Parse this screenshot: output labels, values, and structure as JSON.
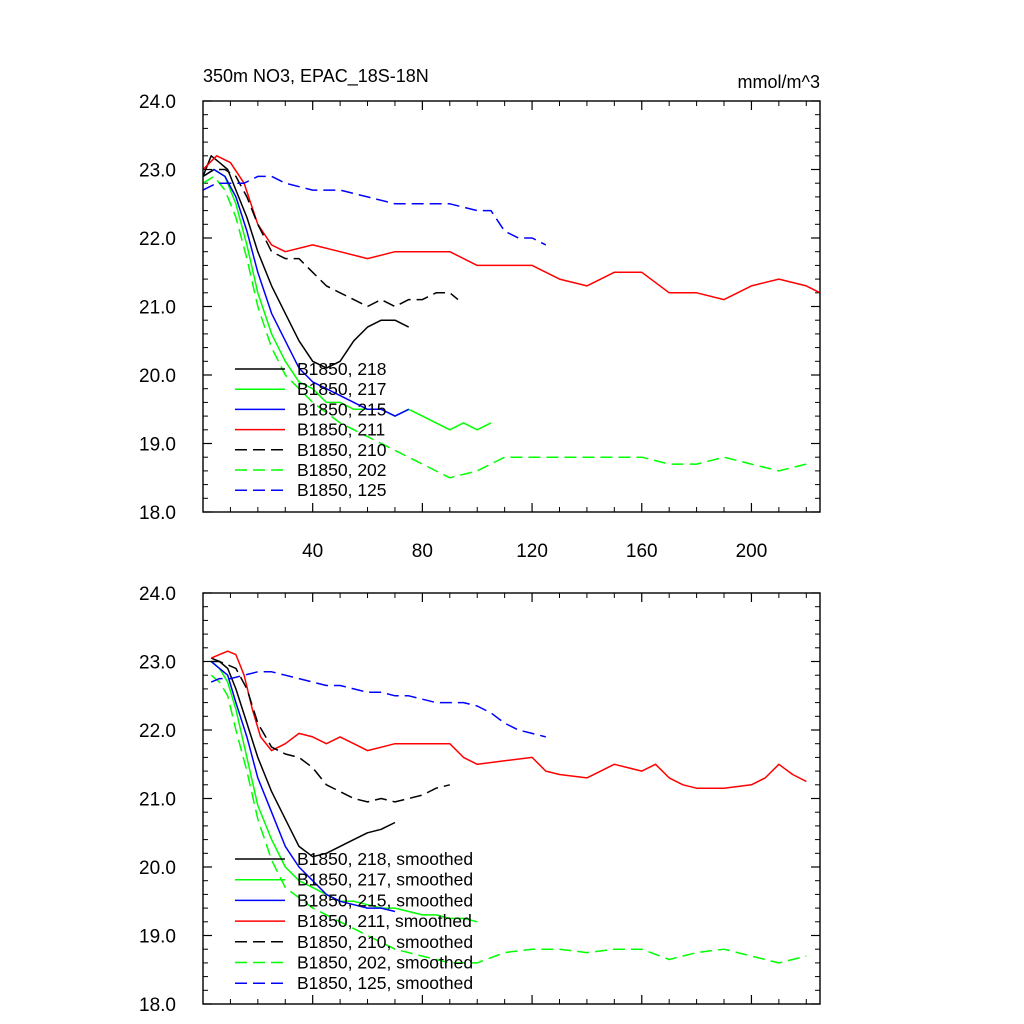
{
  "chart_data": [
    {
      "type": "line",
      "title": "350m NO3, EPAC_18S-18N",
      "units": "mmol/m^3",
      "xlabel": "",
      "ylabel": "",
      "xlim": [
        0,
        225
      ],
      "ylim": [
        18,
        24
      ],
      "xticks": [
        40,
        80,
        120,
        160,
        200
      ],
      "xtick_labels": [
        "40",
        "80",
        "120",
        "160",
        "200"
      ],
      "yticks": [
        18,
        19,
        20,
        21,
        22,
        23,
        24
      ],
      "ytick_labels": [
        "18.0",
        "19.0",
        "20.0",
        "21.0",
        "22.0",
        "23.0",
        "24.0"
      ],
      "legend_position": "lower-left",
      "series": [
        {
          "name": "B1850, 218",
          "color": "#000000",
          "dash": "solid",
          "x": [
            0,
            3,
            6,
            9,
            12,
            16,
            20,
            25,
            30,
            35,
            40,
            45,
            50,
            55,
            60,
            65,
            70,
            75
          ],
          "y": [
            22.9,
            23.2,
            23.1,
            23.0,
            22.7,
            22.3,
            21.8,
            21.3,
            20.9,
            20.5,
            20.2,
            20.1,
            20.2,
            20.5,
            20.7,
            20.8,
            20.8,
            20.7
          ]
        },
        {
          "name": "B1850, 217",
          "color": "#00ff00",
          "dash": "solid",
          "x": [
            0,
            4,
            8,
            12,
            16,
            20,
            25,
            30,
            35,
            40,
            45,
            50,
            55,
            60,
            65,
            70,
            75,
            80,
            85,
            90,
            95,
            100,
            105
          ],
          "y": [
            22.9,
            23.0,
            22.9,
            22.5,
            21.9,
            21.2,
            20.6,
            20.2,
            19.9,
            19.8,
            19.6,
            19.6,
            19.5,
            19.5,
            19.5,
            19.4,
            19.5,
            19.4,
            19.3,
            19.2,
            19.3,
            19.2,
            19.3
          ]
        },
        {
          "name": "B1850, 215",
          "color": "#0000ff",
          "dash": "solid",
          "x": [
            0,
            4,
            8,
            12,
            16,
            20,
            25,
            30,
            35,
            40,
            45,
            50,
            55,
            60,
            65,
            70,
            75
          ],
          "y": [
            22.9,
            23.0,
            22.9,
            22.6,
            22.1,
            21.5,
            20.9,
            20.5,
            20.1,
            19.9,
            19.8,
            19.7,
            19.6,
            19.5,
            19.5,
            19.4,
            19.5
          ]
        },
        {
          "name": "B1850, 211",
          "color": "#ff0000",
          "dash": "solid",
          "x": [
            0,
            5,
            10,
            15,
            20,
            25,
            30,
            40,
            50,
            60,
            70,
            80,
            90,
            100,
            110,
            120,
            130,
            140,
            150,
            160,
            170,
            180,
            190,
            200,
            210,
            220,
            225
          ],
          "y": [
            23.0,
            23.2,
            23.1,
            22.8,
            22.2,
            21.9,
            21.8,
            21.9,
            21.8,
            21.7,
            21.8,
            21.8,
            21.8,
            21.6,
            21.6,
            21.6,
            21.4,
            21.3,
            21.5,
            21.5,
            21.2,
            21.2,
            21.1,
            21.3,
            21.4,
            21.3,
            21.2
          ]
        },
        {
          "name": "B1850, 210",
          "color": "#000000",
          "dash": "dashed",
          "x": [
            0,
            4,
            8,
            12,
            16,
            20,
            25,
            30,
            35,
            40,
            45,
            50,
            55,
            60,
            65,
            70,
            75,
            80,
            85,
            90,
            93
          ],
          "y": [
            22.9,
            23.0,
            23.0,
            22.9,
            22.6,
            22.2,
            21.8,
            21.7,
            21.7,
            21.5,
            21.3,
            21.2,
            21.1,
            21.0,
            21.1,
            21.0,
            21.1,
            21.1,
            21.2,
            21.2,
            21.1
          ]
        },
        {
          "name": "B1850, 202",
          "color": "#00ff00",
          "dash": "dashed",
          "x": [
            0,
            4,
            8,
            12,
            16,
            20,
            25,
            30,
            40,
            50,
            60,
            70,
            80,
            90,
            100,
            110,
            120,
            130,
            140,
            150,
            160,
            170,
            180,
            190,
            200,
            210,
            220
          ],
          "y": [
            22.8,
            22.9,
            22.7,
            22.3,
            21.7,
            21.0,
            20.4,
            20.0,
            19.6,
            19.3,
            19.1,
            18.9,
            18.7,
            18.5,
            18.6,
            18.8,
            18.8,
            18.8,
            18.8,
            18.8,
            18.8,
            18.7,
            18.7,
            18.8,
            18.7,
            18.6,
            18.7
          ]
        },
        {
          "name": "B1850, 125",
          "color": "#0000ff",
          "dash": "dashed",
          "x": [
            0,
            5,
            10,
            15,
            20,
            25,
            30,
            40,
            50,
            60,
            70,
            80,
            90,
            100,
            105,
            110,
            115,
            120,
            125
          ],
          "y": [
            22.7,
            22.8,
            22.8,
            22.8,
            22.9,
            22.9,
            22.8,
            22.7,
            22.7,
            22.6,
            22.5,
            22.5,
            22.5,
            22.4,
            22.4,
            22.1,
            22.0,
            22.0,
            21.9
          ]
        }
      ],
      "legend_labels": [
        "B1850, 218",
        "B1850, 217",
        "B1850, 215",
        "B1850, 211",
        "B1850, 210",
        "B1850, 202",
        "B1850, 125"
      ]
    },
    {
      "type": "line",
      "title": "",
      "xlabel": "",
      "ylabel": "",
      "xlim": [
        0,
        225
      ],
      "ylim": [
        18,
        24
      ],
      "yticks": [
        18,
        19,
        20,
        21,
        22,
        23,
        24
      ],
      "ytick_labels": [
        "18.0",
        "19.0",
        "20.0",
        "21.0",
        "22.0",
        "23.0",
        "24.0"
      ],
      "legend_position": "lower-left",
      "series": [
        {
          "name": "B1850, 218, smoothed",
          "color": "#000000",
          "dash": "solid",
          "x": [
            3,
            6,
            9,
            12,
            16,
            20,
            25,
            30,
            35,
            40,
            45,
            50,
            55,
            60,
            65,
            70
          ],
          "y": [
            23.05,
            23.0,
            22.9,
            22.6,
            22.1,
            21.6,
            21.1,
            20.7,
            20.3,
            20.15,
            20.2,
            20.3,
            20.4,
            20.5,
            20.55,
            20.65
          ]
        },
        {
          "name": "B1850, 217, smoothed",
          "color": "#00ff00",
          "dash": "solid",
          "x": [
            3,
            6,
            9,
            12,
            16,
            20,
            25,
            30,
            35,
            40,
            45,
            50,
            55,
            60,
            65,
            70,
            75,
            80,
            85,
            90,
            95,
            100
          ],
          "y": [
            23.0,
            22.9,
            22.7,
            22.3,
            21.6,
            20.9,
            20.4,
            20.0,
            19.8,
            19.7,
            19.6,
            19.5,
            19.5,
            19.45,
            19.4,
            19.4,
            19.35,
            19.3,
            19.3,
            19.25,
            19.25,
            19.2
          ]
        },
        {
          "name": "B1850, 215, smoothed",
          "color": "#0000ff",
          "dash": "solid",
          "x": [
            3,
            6,
            9,
            12,
            16,
            20,
            25,
            30,
            35,
            40,
            45,
            50,
            55,
            60,
            65,
            70
          ],
          "y": [
            23.0,
            22.9,
            22.8,
            22.4,
            21.9,
            21.3,
            20.8,
            20.3,
            20.0,
            19.8,
            19.6,
            19.5,
            19.45,
            19.4,
            19.4,
            19.35
          ]
        },
        {
          "name": "B1850, 211, smoothed",
          "color": "#ff0000",
          "dash": "solid",
          "x": [
            3,
            6,
            9,
            12,
            15,
            18,
            21,
            25,
            30,
            35,
            40,
            45,
            50,
            55,
            60,
            70,
            80,
            90,
            95,
            100,
            110,
            120,
            125,
            130,
            140,
            150,
            160,
            165,
            170,
            175,
            180,
            190,
            200,
            205,
            210,
            215,
            220
          ],
          "y": [
            23.05,
            23.1,
            23.15,
            23.1,
            22.8,
            22.3,
            21.9,
            21.7,
            21.8,
            21.95,
            21.9,
            21.8,
            21.9,
            21.8,
            21.7,
            21.8,
            21.8,
            21.8,
            21.6,
            21.5,
            21.55,
            21.6,
            21.4,
            21.35,
            21.3,
            21.5,
            21.4,
            21.5,
            21.3,
            21.2,
            21.15,
            21.15,
            21.2,
            21.3,
            21.5,
            21.35,
            21.25
          ]
        },
        {
          "name": "B1850, 210, smoothed",
          "color": "#000000",
          "dash": "dashed",
          "x": [
            3,
            6,
            9,
            12,
            16,
            20,
            25,
            30,
            35,
            40,
            45,
            50,
            55,
            60,
            65,
            70,
            75,
            80,
            85,
            90
          ],
          "y": [
            23.0,
            23.0,
            22.95,
            22.9,
            22.6,
            22.1,
            21.75,
            21.65,
            21.6,
            21.45,
            21.2,
            21.1,
            21.0,
            20.95,
            21.0,
            20.95,
            21.0,
            21.05,
            21.15,
            21.2
          ]
        },
        {
          "name": "B1850, 202, smoothed",
          "color": "#00ff00",
          "dash": "dashed",
          "x": [
            3,
            6,
            9,
            12,
            16,
            20,
            25,
            30,
            40,
            50,
            60,
            70,
            80,
            90,
            100,
            110,
            120,
            130,
            140,
            150,
            160,
            170,
            180,
            190,
            200,
            210,
            215,
            220
          ],
          "y": [
            22.8,
            22.7,
            22.5,
            22.0,
            21.4,
            20.7,
            20.1,
            19.7,
            19.4,
            19.2,
            19.0,
            18.8,
            18.7,
            18.6,
            18.6,
            18.75,
            18.8,
            18.8,
            18.75,
            18.8,
            18.8,
            18.65,
            18.75,
            18.8,
            18.7,
            18.6,
            18.65,
            18.7
          ]
        },
        {
          "name": "B1850, 125, smoothed",
          "color": "#0000ff",
          "dash": "dashed",
          "x": [
            3,
            6,
            10,
            15,
            20,
            25,
            30,
            35,
            40,
            45,
            50,
            55,
            60,
            65,
            70,
            75,
            80,
            85,
            90,
            95,
            100,
            105,
            110,
            115,
            120,
            125
          ],
          "y": [
            22.7,
            22.75,
            22.75,
            22.8,
            22.85,
            22.85,
            22.8,
            22.75,
            22.7,
            22.65,
            22.65,
            22.6,
            22.55,
            22.55,
            22.5,
            22.5,
            22.45,
            22.4,
            22.4,
            22.4,
            22.35,
            22.25,
            22.1,
            22.0,
            21.95,
            21.9
          ]
        }
      ],
      "legend_labels": [
        "B1850, 218, smoothed",
        "B1850, 217, smoothed",
        "B1850, 215, smoothed",
        "B1850, 211, smoothed",
        "B1850, 210, smoothed",
        "B1850, 202, smoothed",
        "B1850, 125, smoothed"
      ]
    }
  ]
}
